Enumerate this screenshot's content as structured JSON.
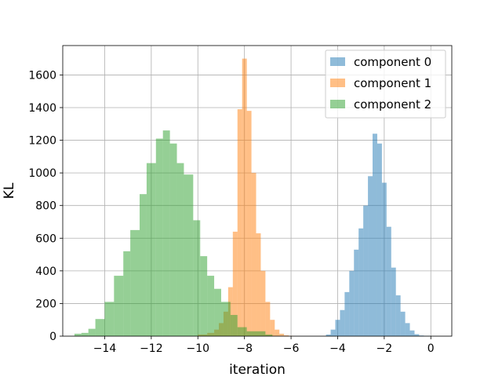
{
  "chart_data": {
    "type": "bar",
    "title": "",
    "xlabel": "iteration",
    "ylabel": "KL",
    "xlim": [
      -15.8,
      0.9
    ],
    "ylim": [
      0,
      1780
    ],
    "grid": true,
    "legend_position": "top-right",
    "xticks": [
      -14,
      -12,
      -10,
      -8,
      -6,
      -4,
      -2,
      0
    ],
    "xtick_labels": [
      "−14",
      "−12",
      "−10",
      "−8",
      "−6",
      "−4",
      "−2",
      "0"
    ],
    "yticks": [
      0,
      200,
      400,
      600,
      800,
      1000,
      1200,
      1400,
      1600
    ],
    "ytick_labels": [
      "0",
      "200",
      "400",
      "600",
      "800",
      "1000",
      "1200",
      "1400",
      "1600"
    ],
    "series": [
      {
        "name": "component 0",
        "color": "#1f77b4",
        "opacity": 0.5,
        "bins": [
          [
            -4.5,
            -4.3,
            10
          ],
          [
            -4.3,
            -4.1,
            40
          ],
          [
            -4.1,
            -3.9,
            100
          ],
          [
            -3.9,
            -3.7,
            160
          ],
          [
            -3.7,
            -3.5,
            270
          ],
          [
            -3.5,
            -3.3,
            400
          ],
          [
            -3.3,
            -3.1,
            530
          ],
          [
            -3.1,
            -2.9,
            660
          ],
          [
            -2.9,
            -2.7,
            800
          ],
          [
            -2.7,
            -2.5,
            980
          ],
          [
            -2.5,
            -2.3,
            1240
          ],
          [
            -2.3,
            -2.1,
            1180
          ],
          [
            -2.1,
            -1.9,
            940
          ],
          [
            -1.9,
            -1.7,
            670
          ],
          [
            -1.7,
            -1.5,
            420
          ],
          [
            -1.5,
            -1.3,
            250
          ],
          [
            -1.3,
            -1.1,
            150
          ],
          [
            -1.1,
            -0.9,
            80
          ],
          [
            -0.9,
            -0.7,
            35
          ],
          [
            -0.7,
            -0.5,
            12
          ],
          [
            -0.5,
            -0.3,
            4
          ],
          [
            -0.3,
            0.0,
            2
          ]
        ]
      },
      {
        "name": "component 1",
        "color": "#ff7f0e",
        "opacity": 0.5,
        "bins": [
          [
            -10.0,
            -9.6,
            10
          ],
          [
            -9.6,
            -9.3,
            20
          ],
          [
            -9.3,
            -9.1,
            40
          ],
          [
            -9.1,
            -8.9,
            80
          ],
          [
            -8.9,
            -8.7,
            150
          ],
          [
            -8.7,
            -8.5,
            300
          ],
          [
            -8.5,
            -8.3,
            640
          ],
          [
            -8.3,
            -8.1,
            1390
          ],
          [
            -8.1,
            -7.9,
            1700
          ],
          [
            -7.9,
            -7.7,
            1380
          ],
          [
            -7.7,
            -7.5,
            1000
          ],
          [
            -7.5,
            -7.3,
            630
          ],
          [
            -7.3,
            -7.1,
            400
          ],
          [
            -7.1,
            -6.9,
            210
          ],
          [
            -6.9,
            -6.7,
            100
          ],
          [
            -6.7,
            -6.5,
            40
          ],
          [
            -6.5,
            -6.3,
            15
          ],
          [
            -6.3,
            -6.1,
            5
          ],
          [
            -6.1,
            -5.9,
            2
          ]
        ]
      },
      {
        "name": "component 2",
        "color": "#2ca02c",
        "opacity": 0.5,
        "bins": [
          [
            -15.3,
            -15.0,
            15
          ],
          [
            -15.0,
            -14.7,
            20
          ],
          [
            -14.7,
            -14.4,
            45
          ],
          [
            -14.4,
            -14.0,
            105
          ],
          [
            -14.0,
            -13.6,
            210
          ],
          [
            -13.6,
            -13.2,
            370
          ],
          [
            -13.2,
            -12.9,
            520
          ],
          [
            -12.9,
            -12.5,
            650
          ],
          [
            -12.5,
            -12.2,
            870
          ],
          [
            -12.2,
            -11.8,
            1060
          ],
          [
            -11.8,
            -11.5,
            1210
          ],
          [
            -11.5,
            -11.2,
            1260
          ],
          [
            -11.2,
            -10.9,
            1180
          ],
          [
            -10.9,
            -10.6,
            1060
          ],
          [
            -10.6,
            -10.2,
            990
          ],
          [
            -10.2,
            -9.9,
            710
          ],
          [
            -9.9,
            -9.6,
            490
          ],
          [
            -9.6,
            -9.3,
            370
          ],
          [
            -9.3,
            -9.0,
            290
          ],
          [
            -9.0,
            -8.6,
            210
          ],
          [
            -8.6,
            -8.3,
            130
          ],
          [
            -8.3,
            -7.9,
            55
          ],
          [
            -7.9,
            -7.5,
            30
          ],
          [
            -7.5,
            -7.1,
            30
          ],
          [
            -7.1,
            -6.8,
            10
          ]
        ]
      }
    ]
  }
}
